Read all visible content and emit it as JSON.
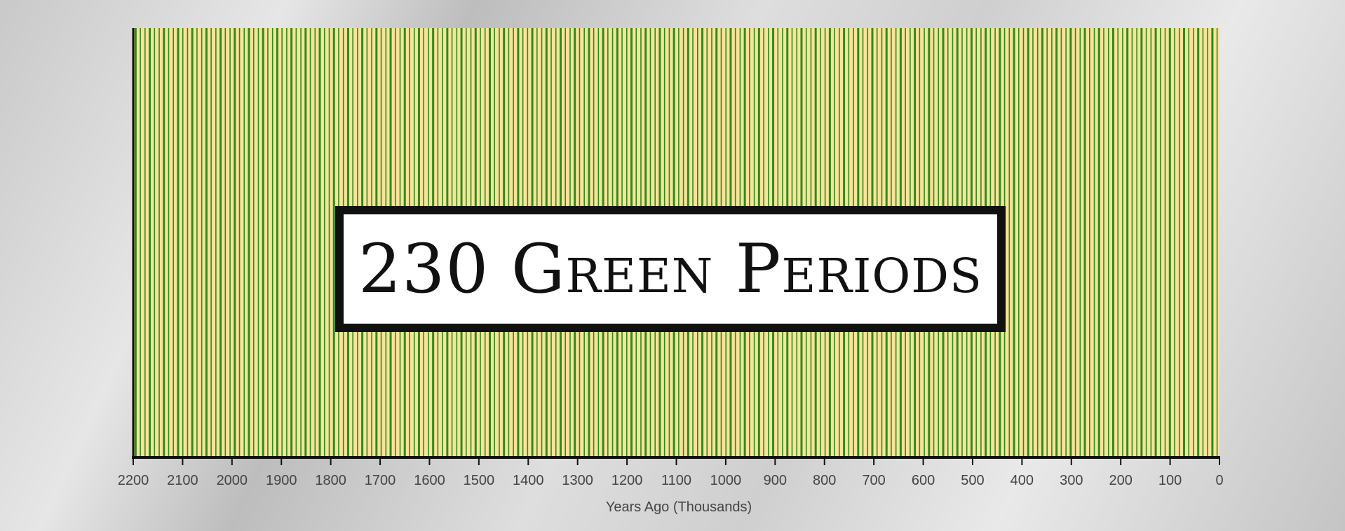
{
  "chart_data": {
    "type": "bar",
    "title": "230 Green Periods",
    "xlabel": "Years Ago (Thousands)",
    "xlim": [
      2200,
      0
    ],
    "x_ticks": [
      "2200",
      "2100",
      "2000",
      "1900",
      "1800",
      "1700",
      "1600",
      "1500",
      "1400",
      "1300",
      "1200",
      "1100",
      "1000",
      "900",
      "800",
      "700",
      "600",
      "500",
      "400",
      "300",
      "200",
      "100",
      "0"
    ],
    "period_count": 230,
    "colors": {
      "background": "#f7e39a",
      "green": "#2f8a1e",
      "axis": "#111111"
    }
  }
}
